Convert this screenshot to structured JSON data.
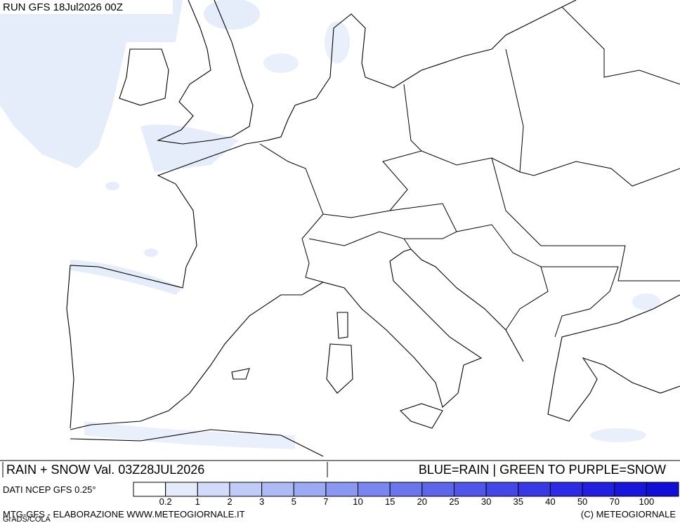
{
  "header": {
    "run": "RUN GFS 18Jul2026 00Z"
  },
  "footer": {
    "title": "RAIN + SNOW Val. 03Z28JUL2026",
    "key": "BLUE=RAIN | GREEN TO PURPLE=SNOW",
    "source": "DATI NCEP GFS 0.25°",
    "credit": "MTG-GFS - ELABORAZIONE WWW.METEOGIORNALE.IT",
    "copyright": "(C) METEOGIORNALE",
    "software": "GrADS/COLA"
  },
  "legend": {
    "levels": [
      0.2,
      1,
      2,
      3,
      5,
      7,
      10,
      15,
      20,
      25,
      30,
      35,
      40,
      50,
      70,
      100
    ],
    "colors": [
      "#ffffff",
      "#e4ebfb",
      "#d2dbf9",
      "#c0cbf7",
      "#aebaf5",
      "#9ca9f3",
      "#8a98f1",
      "#7986ef",
      "#6b76ed",
      "#5d66eb",
      "#5056e9",
      "#4447e7",
      "#3839e5",
      "#2d2be3",
      "#2220e0",
      "#1916dc",
      "#110ed8"
    ]
  }
}
